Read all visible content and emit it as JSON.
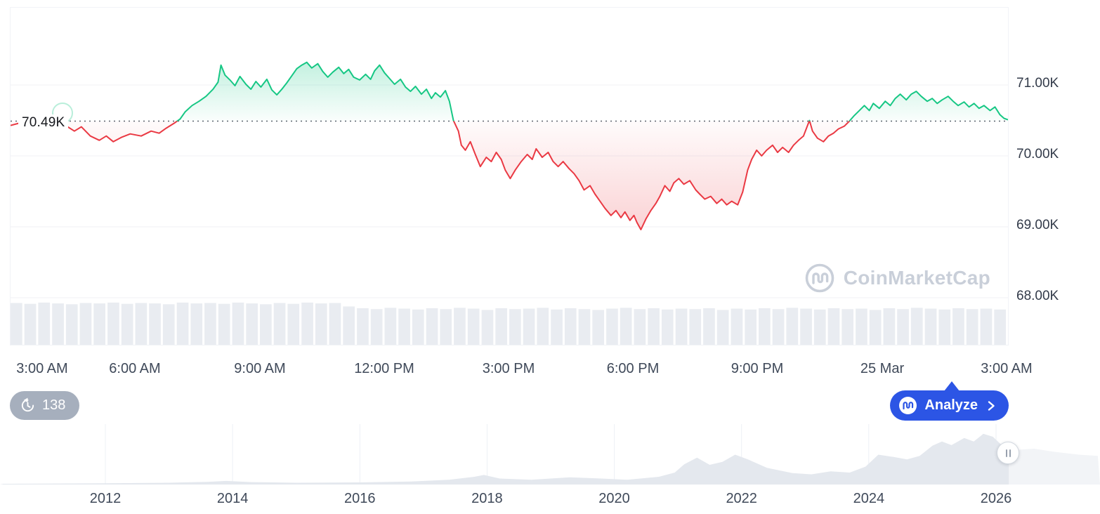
{
  "price_labels": {
    "baseline": "70.49K",
    "current": "70.50K"
  },
  "watermark": {
    "text": "CoinMarketCap"
  },
  "history_badge": {
    "count": "138"
  },
  "analyze_button": {
    "label": "Analyze"
  },
  "icons": {
    "history": "history-icon",
    "cmc_logo": "coinmarketcap-logo-icon",
    "chevron": "chevron-right-icon",
    "handle": "slider-handle-icon"
  },
  "colors": {
    "up": "#16c784",
    "down": "#ea3943",
    "badge_green": "#16c784",
    "accent_blue": "#2c55e5",
    "grid": "#f0f2f6",
    "volume": "#e9ecf1",
    "nav_fill": "#e4e8ee",
    "nav_grid": "#edf0f5"
  },
  "chart_data": [
    {
      "id": "price-intraday",
      "type": "line",
      "baseline": 70.49,
      "last_price": 70.5,
      "ylim": [
        68.0,
        71.5
      ],
      "grid": "horizontal",
      "legend": "none",
      "y_ticks": [
        71.0,
        70.0,
        69.0,
        68.0
      ],
      "y_tick_labels": [
        "71.00K",
        "70.00K",
        "69.00K",
        "68.00K"
      ],
      "x_tick_labels": [
        "3:00 AM",
        "6:00 AM",
        "9:00 AM",
        "12:00 PM",
        "3:00 PM",
        "6:00 PM",
        "9:00 PM",
        "25 Mar",
        "3:00 AM"
      ],
      "colors": {
        "up": "#16c784",
        "down": "#ea3943"
      },
      "points": [
        [
          0.0,
          70.43
        ],
        [
          0.011,
          70.47
        ],
        [
          0.022,
          70.41
        ],
        [
          0.032,
          70.45
        ],
        [
          0.043,
          70.38
        ],
        [
          0.054,
          70.44
        ],
        [
          0.064,
          70.35
        ],
        [
          0.071,
          70.41
        ],
        [
          0.08,
          70.28
        ],
        [
          0.089,
          70.22
        ],
        [
          0.096,
          70.28
        ],
        [
          0.103,
          70.2
        ],
        [
          0.111,
          70.26
        ],
        [
          0.12,
          70.31
        ],
        [
          0.131,
          70.28
        ],
        [
          0.141,
          70.35
        ],
        [
          0.149,
          70.32
        ],
        [
          0.156,
          70.39
        ],
        [
          0.164,
          70.46
        ],
        [
          0.17,
          70.52
        ],
        [
          0.175,
          70.62
        ],
        [
          0.182,
          70.71
        ],
        [
          0.189,
          70.77
        ],
        [
          0.196,
          70.84
        ],
        [
          0.203,
          70.94
        ],
        [
          0.208,
          71.04
        ],
        [
          0.211,
          71.28
        ],
        [
          0.215,
          71.14
        ],
        [
          0.22,
          71.07
        ],
        [
          0.225,
          70.99
        ],
        [
          0.23,
          71.12
        ],
        [
          0.236,
          71.01
        ],
        [
          0.241,
          70.94
        ],
        [
          0.246,
          71.05
        ],
        [
          0.251,
          70.97
        ],
        [
          0.257,
          71.08
        ],
        [
          0.262,
          70.93
        ],
        [
          0.267,
          70.86
        ],
        [
          0.272,
          70.94
        ],
        [
          0.277,
          71.03
        ],
        [
          0.282,
          71.13
        ],
        [
          0.287,
          71.23
        ],
        [
          0.292,
          71.28
        ],
        [
          0.297,
          71.32
        ],
        [
          0.302,
          71.24
        ],
        [
          0.308,
          71.3
        ],
        [
          0.313,
          71.19
        ],
        [
          0.318,
          71.11
        ],
        [
          0.323,
          71.18
        ],
        [
          0.329,
          71.25
        ],
        [
          0.334,
          71.16
        ],
        [
          0.339,
          71.22
        ],
        [
          0.344,
          71.11
        ],
        [
          0.35,
          71.07
        ],
        [
          0.356,
          71.15
        ],
        [
          0.361,
          71.08
        ],
        [
          0.365,
          71.2
        ],
        [
          0.37,
          71.28
        ],
        [
          0.375,
          71.17
        ],
        [
          0.38,
          71.09
        ],
        [
          0.385,
          71.01
        ],
        [
          0.391,
          71.08
        ],
        [
          0.396,
          70.97
        ],
        [
          0.401,
          70.91
        ],
        [
          0.406,
          70.98
        ],
        [
          0.412,
          70.87
        ],
        [
          0.417,
          70.94
        ],
        [
          0.422,
          70.81
        ],
        [
          0.426,
          70.89
        ],
        [
          0.431,
          70.83
        ],
        [
          0.436,
          70.92
        ],
        [
          0.44,
          70.77
        ],
        [
          0.444,
          70.5
        ],
        [
          0.449,
          70.35
        ],
        [
          0.452,
          70.15
        ],
        [
          0.456,
          70.08
        ],
        [
          0.461,
          70.2
        ],
        [
          0.466,
          70.02
        ],
        [
          0.471,
          69.85
        ],
        [
          0.477,
          69.98
        ],
        [
          0.482,
          69.92
        ],
        [
          0.487,
          70.05
        ],
        [
          0.492,
          69.95
        ],
        [
          0.496,
          69.8
        ],
        [
          0.501,
          69.68
        ],
        [
          0.506,
          69.8
        ],
        [
          0.512,
          69.92
        ],
        [
          0.518,
          70.02
        ],
        [
          0.523,
          69.95
        ],
        [
          0.527,
          70.1
        ],
        [
          0.533,
          69.98
        ],
        [
          0.539,
          70.05
        ],
        [
          0.544,
          69.92
        ],
        [
          0.549,
          69.85
        ],
        [
          0.554,
          69.92
        ],
        [
          0.56,
          69.82
        ],
        [
          0.565,
          69.75
        ],
        [
          0.57,
          69.65
        ],
        [
          0.575,
          69.52
        ],
        [
          0.581,
          69.58
        ],
        [
          0.586,
          69.46
        ],
        [
          0.591,
          69.36
        ],
        [
          0.596,
          69.26
        ],
        [
          0.602,
          69.16
        ],
        [
          0.607,
          69.23
        ],
        [
          0.612,
          69.13
        ],
        [
          0.616,
          69.21
        ],
        [
          0.621,
          69.09
        ],
        [
          0.625,
          69.16
        ],
        [
          0.628,
          69.06
        ],
        [
          0.632,
          68.96
        ],
        [
          0.637,
          69.11
        ],
        [
          0.642,
          69.23
        ],
        [
          0.647,
          69.33
        ],
        [
          0.651,
          69.43
        ],
        [
          0.656,
          69.58
        ],
        [
          0.661,
          69.5
        ],
        [
          0.665,
          69.62
        ],
        [
          0.67,
          69.68
        ],
        [
          0.675,
          69.6
        ],
        [
          0.681,
          69.65
        ],
        [
          0.687,
          69.52
        ],
        [
          0.691,
          69.46
        ],
        [
          0.696,
          69.39
        ],
        [
          0.702,
          69.43
        ],
        [
          0.708,
          69.33
        ],
        [
          0.713,
          69.39
        ],
        [
          0.718,
          69.31
        ],
        [
          0.723,
          69.36
        ],
        [
          0.729,
          69.31
        ],
        [
          0.734,
          69.49
        ],
        [
          0.739,
          69.8
        ],
        [
          0.743,
          69.95
        ],
        [
          0.748,
          70.08
        ],
        [
          0.753,
          70.0
        ],
        [
          0.758,
          70.08
        ],
        [
          0.764,
          70.15
        ],
        [
          0.769,
          70.05
        ],
        [
          0.774,
          70.12
        ],
        [
          0.78,
          70.05
        ],
        [
          0.785,
          70.15
        ],
        [
          0.79,
          70.22
        ],
        [
          0.795,
          70.28
        ],
        [
          0.801,
          70.5
        ],
        [
          0.804,
          70.35
        ],
        [
          0.809,
          70.25
        ],
        [
          0.815,
          70.2
        ],
        [
          0.82,
          70.28
        ],
        [
          0.825,
          70.32
        ],
        [
          0.83,
          70.38
        ],
        [
          0.836,
          70.42
        ],
        [
          0.841,
          70.49
        ],
        [
          0.846,
          70.57
        ],
        [
          0.851,
          70.64
        ],
        [
          0.856,
          70.71
        ],
        [
          0.861,
          70.64
        ],
        [
          0.865,
          70.74
        ],
        [
          0.871,
          70.67
        ],
        [
          0.877,
          70.77
        ],
        [
          0.882,
          70.71
        ],
        [
          0.887,
          70.81
        ],
        [
          0.892,
          70.87
        ],
        [
          0.898,
          70.79
        ],
        [
          0.903,
          70.87
        ],
        [
          0.908,
          70.91
        ],
        [
          0.913,
          70.84
        ],
        [
          0.919,
          70.77
        ],
        [
          0.924,
          70.81
        ],
        [
          0.929,
          70.74
        ],
        [
          0.934,
          70.79
        ],
        [
          0.94,
          70.84
        ],
        [
          0.945,
          70.77
        ],
        [
          0.95,
          70.71
        ],
        [
          0.956,
          70.76
        ],
        [
          0.961,
          70.69
        ],
        [
          0.966,
          70.74
        ],
        [
          0.971,
          70.67
        ],
        [
          0.976,
          70.71
        ],
        [
          0.982,
          70.64
        ],
        [
          0.987,
          70.69
        ],
        [
          0.992,
          70.58
        ],
        [
          0.996,
          70.53
        ],
        [
          1.0,
          70.51
        ]
      ],
      "volume_bars": [
        0.96,
        0.94,
        0.97,
        0.95,
        0.93,
        0.96,
        0.95,
        0.97,
        0.94,
        0.96,
        0.95,
        0.93,
        0.97,
        0.95,
        0.96,
        0.94,
        0.97,
        0.95,
        0.93,
        0.96,
        0.94,
        0.97,
        0.95,
        0.96,
        0.88,
        0.84,
        0.82,
        0.85,
        0.83,
        0.81,
        0.84,
        0.82,
        0.85,
        0.83,
        0.8,
        0.84,
        0.82,
        0.83,
        0.85,
        0.81,
        0.84,
        0.82,
        0.8,
        0.83,
        0.85,
        0.82,
        0.84,
        0.81,
        0.83,
        0.82,
        0.84,
        0.8,
        0.83,
        0.81,
        0.84,
        0.82,
        0.85,
        0.83,
        0.81,
        0.84,
        0.82,
        0.83,
        0.8,
        0.84,
        0.82,
        0.85,
        0.83,
        0.81,
        0.84,
        0.82,
        0.83,
        0.81
      ]
    },
    {
      "id": "navigator-history",
      "type": "area",
      "x_tick_labels": [
        "2012",
        "2014",
        "2016",
        "2018",
        "2020",
        "2022",
        "2024",
        "2026"
      ],
      "selected_range_end_year": 2026.2,
      "points": [
        [
          2010.4,
          0.012
        ],
        [
          2012.0,
          0.02
        ],
        [
          2013.0,
          0.03
        ],
        [
          2013.6,
          0.045
        ],
        [
          2013.9,
          0.06
        ],
        [
          2014.3,
          0.04
        ],
        [
          2015.0,
          0.03
        ],
        [
          2016.0,
          0.035
        ],
        [
          2016.8,
          0.05
        ],
        [
          2017.4,
          0.08
        ],
        [
          2017.8,
          0.13
        ],
        [
          2017.95,
          0.16
        ],
        [
          2018.2,
          0.1
        ],
        [
          2018.7,
          0.08
        ],
        [
          2019.3,
          0.12
        ],
        [
          2019.8,
          0.1
        ],
        [
          2020.2,
          0.08
        ],
        [
          2020.7,
          0.13
        ],
        [
          2020.95,
          0.2
        ],
        [
          2021.1,
          0.34
        ],
        [
          2021.3,
          0.45
        ],
        [
          2021.5,
          0.33
        ],
        [
          2021.7,
          0.38
        ],
        [
          2021.9,
          0.5
        ],
        [
          2022.1,
          0.42
        ],
        [
          2022.4,
          0.28
        ],
        [
          2022.8,
          0.19
        ],
        [
          2023.1,
          0.17
        ],
        [
          2023.4,
          0.22
        ],
        [
          2023.7,
          0.2
        ],
        [
          2023.95,
          0.3
        ],
        [
          2024.15,
          0.5
        ],
        [
          2024.4,
          0.46
        ],
        [
          2024.6,
          0.42
        ],
        [
          2024.8,
          0.48
        ],
        [
          2025.0,
          0.65
        ],
        [
          2025.15,
          0.72
        ],
        [
          2025.3,
          0.66
        ],
        [
          2025.5,
          0.78
        ],
        [
          2025.65,
          0.72
        ],
        [
          2025.8,
          0.85
        ],
        [
          2025.95,
          0.8
        ],
        [
          2026.1,
          0.65
        ],
        [
          2026.3,
          0.58
        ],
        [
          2026.6,
          0.6
        ],
        [
          2026.9,
          0.55
        ],
        [
          2027.3,
          0.5
        ],
        [
          2027.6,
          0.48
        ]
      ]
    }
  ]
}
